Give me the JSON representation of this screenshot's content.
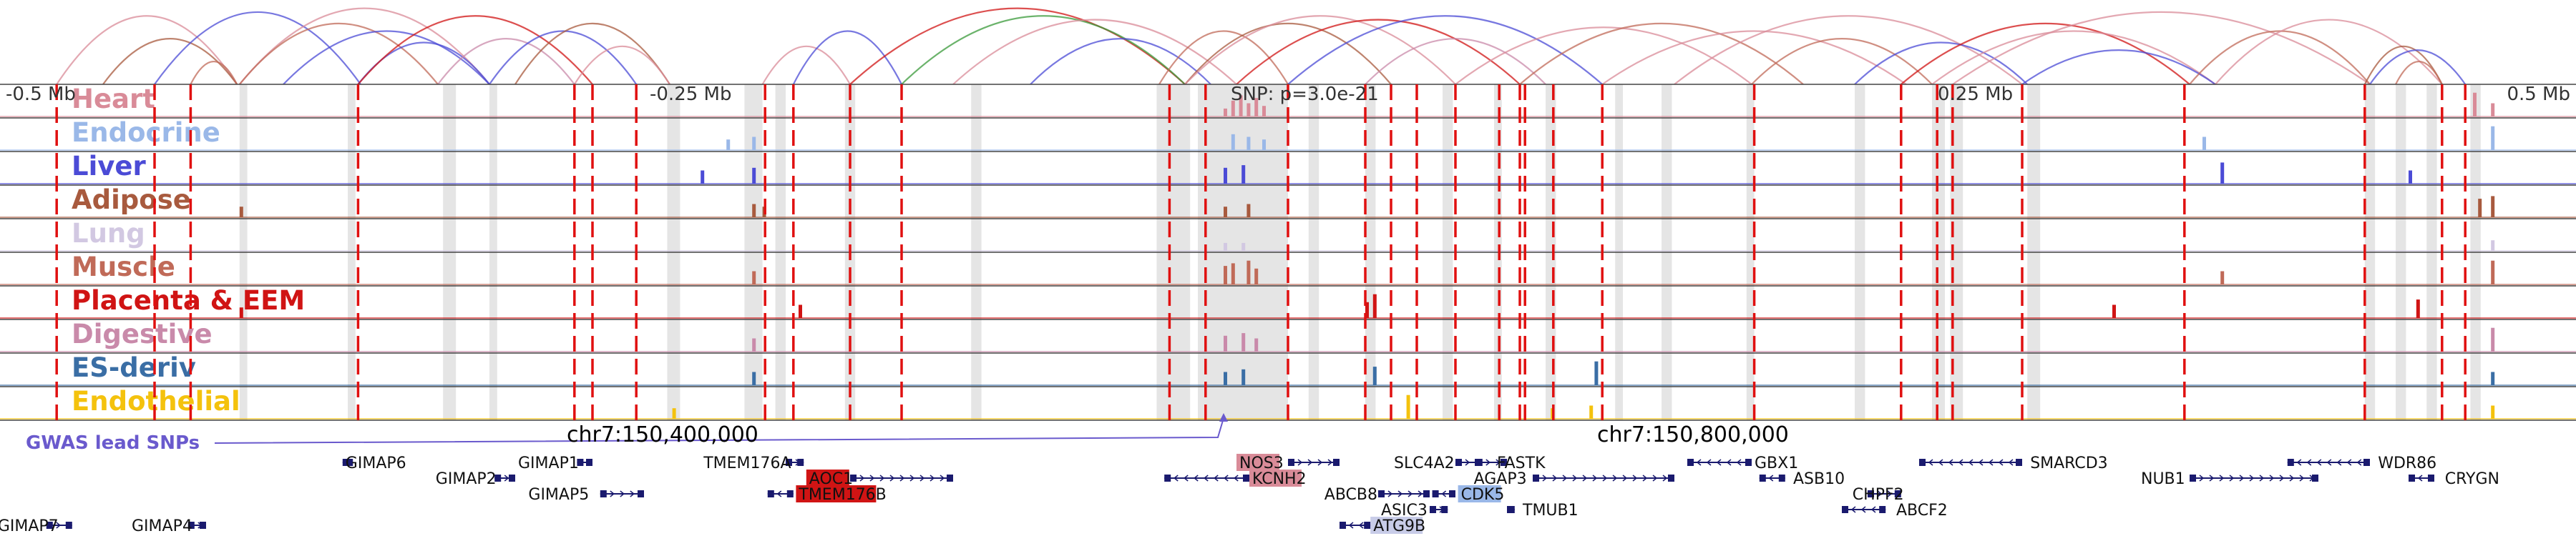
{
  "chart_data": {
    "type": "genome-browser",
    "region": {
      "start_mb": -0.5,
      "end_mb": 0.5
    },
    "axis_ticks": [
      {
        "label": "-0.5 Mb",
        "pos": -0.5
      },
      {
        "label": "-0.25 Mb",
        "pos": -0.25
      },
      {
        "label": "0.25 Mb",
        "pos": 0.25
      },
      {
        "label": "0.5 Mb",
        "pos": 0.5
      }
    ],
    "snp": {
      "label": "SNP: p=3.0e-21",
      "pos": -0.025
    },
    "tracks": [
      {
        "name": "Heart",
        "color": "#d98b98"
      },
      {
        "name": "Endocrine",
        "color": "#9ab8e8"
      },
      {
        "name": "Liver",
        "color": "#4b4bd6"
      },
      {
        "name": "Adipose",
        "color": "#a85a3e"
      },
      {
        "name": "Lung",
        "color": "#d2c8e2"
      },
      {
        "name": "Muscle",
        "color": "#c06a58"
      },
      {
        "name": "Placenta & EEM",
        "color": "#d01414"
      },
      {
        "name": "Digestive",
        "color": "#c98aaa"
      },
      {
        "name": "ES-deriv",
        "color": "#3a6ea5"
      },
      {
        "name": "Endothelial",
        "color": "#f4c20d"
      }
    ],
    "peaks": [
      {
        "track": 0,
        "x": [
          0.475,
          0.478,
          0.481,
          0.484,
          0.487,
          0.49,
          0.96,
          0.967
        ],
        "h": [
          0.3,
          0.6,
          0.8,
          0.5,
          0.7,
          0.4,
          0.9,
          0.5
        ]
      },
      {
        "track": 1,
        "x": [
          0.282,
          0.292,
          0.478,
          0.484,
          0.49,
          0.855,
          0.967
        ],
        "h": [
          0.4,
          0.5,
          0.6,
          0.5,
          0.4,
          0.5,
          0.9
        ]
      },
      {
        "track": 2,
        "x": [
          0.272,
          0.292,
          0.475,
          0.482,
          0.862,
          0.935
        ],
        "h": [
          0.5,
          0.6,
          0.6,
          0.7,
          0.8,
          0.5
        ]
      },
      {
        "track": 3,
        "x": [
          0.093,
          0.292,
          0.296,
          0.475,
          0.484,
          0.962,
          0.967
        ],
        "h": [
          0.4,
          0.5,
          0.4,
          0.4,
          0.5,
          0.7,
          0.8
        ]
      },
      {
        "track": 4,
        "x": [
          0.475,
          0.482,
          0.967
        ],
        "h": [
          0.3,
          0.3,
          0.4
        ]
      },
      {
        "track": 5,
        "x": [
          0.292,
          0.475,
          0.478,
          0.484,
          0.487,
          0.862,
          0.967
        ],
        "h": [
          0.5,
          0.7,
          0.8,
          0.9,
          0.6,
          0.5,
          0.9
        ]
      },
      {
        "track": 6,
        "x": [
          0.093,
          0.31,
          0.53,
          0.533,
          0.82,
          0.938
        ],
        "h": [
          0.4,
          0.5,
          0.6,
          0.9,
          0.5,
          0.7
        ]
      },
      {
        "track": 7,
        "x": [
          0.292,
          0.475,
          0.482,
          0.487,
          0.967
        ],
        "h": [
          0.5,
          0.6,
          0.7,
          0.5,
          0.9
        ]
      },
      {
        "track": 8,
        "x": [
          0.292,
          0.475,
          0.482,
          0.533,
          0.619,
          0.967
        ],
        "h": [
          0.5,
          0.5,
          0.6,
          0.7,
          0.9,
          0.5
        ]
      },
      {
        "track": 9,
        "x": [
          0.261,
          0.546,
          0.602,
          0.617,
          0.967
        ],
        "h": [
          0.4,
          0.9,
          0.4,
          0.5,
          0.5
        ]
      }
    ],
    "highlight_regions": [
      [
        0.093,
        0.096
      ],
      [
        0.135,
        0.138
      ],
      [
        0.172,
        0.177
      ],
      [
        0.19,
        0.193
      ],
      [
        0.259,
        0.264
      ],
      [
        0.289,
        0.296
      ],
      [
        0.301,
        0.305
      ],
      [
        0.328,
        0.332
      ],
      [
        0.377,
        0.381
      ],
      [
        0.449,
        0.462
      ],
      [
        0.465,
        0.5
      ],
      [
        0.508,
        0.512
      ],
      [
        0.53,
        0.534
      ],
      [
        0.56,
        0.564
      ],
      [
        0.58,
        0.583
      ],
      [
        0.6,
        0.604
      ],
      [
        0.627,
        0.63
      ],
      [
        0.645,
        0.649
      ],
      [
        0.678,
        0.681
      ],
      [
        0.72,
        0.724
      ],
      [
        0.75,
        0.755
      ],
      [
        0.757,
        0.762
      ],
      [
        0.787,
        0.792
      ],
      [
        0.918,
        0.922
      ],
      [
        0.93,
        0.934
      ],
      [
        0.942,
        0.946
      ],
      [
        0.959,
        0.963
      ]
    ],
    "red_lines": [
      0.022,
      0.06,
      0.074,
      0.139,
      0.223,
      0.23,
      0.247,
      0.297,
      0.308,
      0.33,
      0.35,
      0.454,
      0.468,
      0.5,
      0.53,
      0.54,
      0.55,
      0.565,
      0.582,
      0.59,
      0.592,
      0.603,
      0.622,
      0.681,
      0.738,
      0.752,
      0.758,
      0.785,
      0.848,
      0.918,
      0.948,
      0.957
    ],
    "arcs": [
      {
        "a": 0.022,
        "b": 0.092,
        "h": 0.9,
        "c": "#d98b98"
      },
      {
        "a": 0.04,
        "b": 0.092,
        "h": 0.6,
        "c": "#a85a3e"
      },
      {
        "a": 0.06,
        "b": 0.14,
        "h": 0.95,
        "c": "#4b4bd6"
      },
      {
        "a": 0.074,
        "b": 0.092,
        "h": 0.3,
        "c": "#c06a58"
      },
      {
        "a": 0.093,
        "b": 0.19,
        "h": 1.0,
        "c": "#d98b98"
      },
      {
        "a": 0.093,
        "b": 0.17,
        "h": 0.8,
        "c": "#c06a58"
      },
      {
        "a": 0.11,
        "b": 0.19,
        "h": 0.7,
        "c": "#4b4bd6"
      },
      {
        "a": 0.139,
        "b": 0.19,
        "h": 0.55,
        "c": "#4b4bd6"
      },
      {
        "a": 0.139,
        "b": 0.23,
        "h": 0.9,
        "c": "#d01414"
      },
      {
        "a": 0.17,
        "b": 0.223,
        "h": 0.6,
        "c": "#c98aaa"
      },
      {
        "a": 0.19,
        "b": 0.247,
        "h": 0.7,
        "c": "#4b4bd6"
      },
      {
        "a": 0.2,
        "b": 0.26,
        "h": 0.8,
        "c": "#a85a3e"
      },
      {
        "a": 0.223,
        "b": 0.26,
        "h": 0.5,
        "c": "#d98b98"
      },
      {
        "a": 0.296,
        "b": 0.33,
        "h": 0.5,
        "c": "#d98b98"
      },
      {
        "a": 0.308,
        "b": 0.35,
        "h": 0.7,
        "c": "#4b4bd6"
      },
      {
        "a": 0.33,
        "b": 0.46,
        "h": 1.0,
        "c": "#d01414"
      },
      {
        "a": 0.35,
        "b": 0.46,
        "h": 0.9,
        "c": "#3a9a3a"
      },
      {
        "a": 0.37,
        "b": 0.48,
        "h": 0.85,
        "c": "#d98b98"
      },
      {
        "a": 0.4,
        "b": 0.47,
        "h": 0.6,
        "c": "#4b4bd6"
      },
      {
        "a": 0.45,
        "b": 0.5,
        "h": 0.7,
        "c": "#c06a58"
      },
      {
        "a": 0.46,
        "b": 0.54,
        "h": 0.8,
        "c": "#a85a3e"
      },
      {
        "a": 0.46,
        "b": 0.565,
        "h": 0.9,
        "c": "#d98b98"
      },
      {
        "a": 0.48,
        "b": 0.59,
        "h": 0.85,
        "c": "#d01414"
      },
      {
        "a": 0.5,
        "b": 0.622,
        "h": 0.9,
        "c": "#4b4bd6"
      },
      {
        "a": 0.53,
        "b": 0.6,
        "h": 0.6,
        "c": "#c98aaa"
      },
      {
        "a": 0.565,
        "b": 0.68,
        "h": 0.75,
        "c": "#d98b98"
      },
      {
        "a": 0.59,
        "b": 0.7,
        "h": 0.8,
        "c": "#c06a58"
      },
      {
        "a": 0.622,
        "b": 0.74,
        "h": 0.7,
        "c": "#d98b98"
      },
      {
        "a": 0.65,
        "b": 0.785,
        "h": 0.9,
        "c": "#d98b98"
      },
      {
        "a": 0.68,
        "b": 0.75,
        "h": 0.6,
        "c": "#c06a58"
      },
      {
        "a": 0.72,
        "b": 0.787,
        "h": 0.55,
        "c": "#4b4bd6"
      },
      {
        "a": 0.738,
        "b": 0.85,
        "h": 0.8,
        "c": "#d01414"
      },
      {
        "a": 0.75,
        "b": 0.86,
        "h": 0.7,
        "c": "#d98b98"
      },
      {
        "a": 0.758,
        "b": 0.92,
        "h": 0.95,
        "c": "#d98b98"
      },
      {
        "a": 0.785,
        "b": 0.86,
        "h": 0.45,
        "c": "#4b4bd6"
      },
      {
        "a": 0.85,
        "b": 0.92,
        "h": 0.7,
        "c": "#c06a58"
      },
      {
        "a": 0.86,
        "b": 0.948,
        "h": 0.85,
        "c": "#d98b98"
      },
      {
        "a": 0.918,
        "b": 0.948,
        "h": 0.5,
        "c": "#a85a3e"
      },
      {
        "a": 0.92,
        "b": 0.957,
        "h": 0.45,
        "c": "#4b4bd6"
      },
      {
        "a": 0.93,
        "b": 0.948,
        "h": 0.3,
        "c": "#c06a58"
      }
    ],
    "gwas_label": "GWAS lead SNPs",
    "coordinates": [
      {
        "label": "chr7:150,400,000",
        "pos": 0.22
      },
      {
        "label": "chr7:150,800,000",
        "pos": 0.62
      }
    ],
    "genes": [
      {
        "name": "GIMAP6",
        "x": 0.133,
        "row": 0,
        "start": 0.133,
        "end": 0.137,
        "strand": ""
      },
      {
        "name": "GIMAP1",
        "x": 0.2,
        "row": 0,
        "start": 0.224,
        "end": 0.23,
        "strand": ""
      },
      {
        "name": "TMEM176A",
        "x": 0.272,
        "row": 0,
        "start": 0.305,
        "end": 0.312,
        "strand": ">"
      },
      {
        "name": "NOS3",
        "x": 0.48,
        "row": 0,
        "start": 0.5,
        "end": 0.52,
        "strand": ">",
        "box": "#d98b98"
      },
      {
        "name": "SLC4A2",
        "x": 0.54,
        "row": 0,
        "start": 0.565,
        "end": 0.575,
        "strand": ">"
      },
      {
        "name": "FASTK",
        "x": 0.58,
        "row": 0,
        "start": 0.573,
        "end": 0.585,
        "strand": ">"
      },
      {
        "name": "GBX1",
        "x": 0.68,
        "row": 0,
        "start": 0.655,
        "end": 0.68,
        "strand": "<"
      },
      {
        "name": "SMARCD3",
        "x": 0.787,
        "row": 0,
        "start": 0.745,
        "end": 0.785,
        "strand": "<"
      },
      {
        "name": "WDR86",
        "x": 0.922,
        "row": 0,
        "start": 0.888,
        "end": 0.92,
        "strand": "<"
      },
      {
        "name": "GIMAP2",
        "x": 0.168,
        "row": 1,
        "start": 0.192,
        "end": 0.2,
        "strand": ">"
      },
      {
        "name": "AOC1",
        "x": 0.313,
        "row": 1,
        "start": 0.33,
        "end": 0.37,
        "strand": ">",
        "box": "#d01414"
      },
      {
        "name": "KCNH2",
        "x": 0.485,
        "row": 1,
        "start": 0.452,
        "end": 0.485,
        "strand": "<",
        "box": "#d98b98"
      },
      {
        "name": "AGAP3",
        "x": 0.571,
        "row": 1,
        "start": 0.595,
        "end": 0.65,
        "strand": ">"
      },
      {
        "name": "ASB10",
        "x": 0.695,
        "row": 1,
        "start": 0.683,
        "end": 0.693,
        "strand": "<"
      },
      {
        "name": "NUB1",
        "x": 0.83,
        "row": 1,
        "start": 0.85,
        "end": 0.9,
        "strand": ">"
      },
      {
        "name": "CRYGN",
        "x": 0.948,
        "row": 1,
        "start": 0.935,
        "end": 0.945,
        "strand": "<"
      },
      {
        "name": "GIMAP5",
        "x": 0.204,
        "row": 2,
        "start": 0.233,
        "end": 0.25,
        "strand": ">"
      },
      {
        "name": "TMEM176B",
        "x": 0.309,
        "row": 2,
        "start": 0.298,
        "end": 0.308,
        "strand": "<",
        "box": "#d01414"
      },
      {
        "name": "ABCB8",
        "x": 0.513,
        "row": 2,
        "start": 0.535,
        "end": 0.555,
        "strand": ">"
      },
      {
        "name": "CDK5",
        "x": 0.566,
        "row": 2,
        "start": 0.556,
        "end": 0.565,
        "strand": "<",
        "box": "#9ab8e8"
      },
      {
        "name": "CHPF2",
        "x": 0.718,
        "row": 2,
        "start": 0.725,
        "end": 0.738,
        "strand": ">"
      },
      {
        "name": "ASIC3",
        "x": 0.535,
        "row": 3,
        "start": 0.555,
        "end": 0.562,
        "strand": ">"
      },
      {
        "name": "TMUB1",
        "x": 0.59,
        "row": 3,
        "start": 0.585,
        "end": 0.588,
        "strand": ""
      },
      {
        "name": "ABCF2",
        "x": 0.735,
        "row": 3,
        "start": 0.715,
        "end": 0.732,
        "strand": "<"
      },
      {
        "name": "GIMAP7",
        "x": -0.002,
        "row": 4,
        "start": 0.018,
        "end": 0.028,
        "strand": ">"
      },
      {
        "name": "GIMAP4",
        "x": 0.05,
        "row": 4,
        "start": 0.073,
        "end": 0.08,
        "strand": ">"
      },
      {
        "name": "ATG9B",
        "x": 0.532,
        "row": 4,
        "start": 0.52,
        "end": 0.532,
        "strand": "<",
        "box": "#c8cce8"
      }
    ]
  }
}
